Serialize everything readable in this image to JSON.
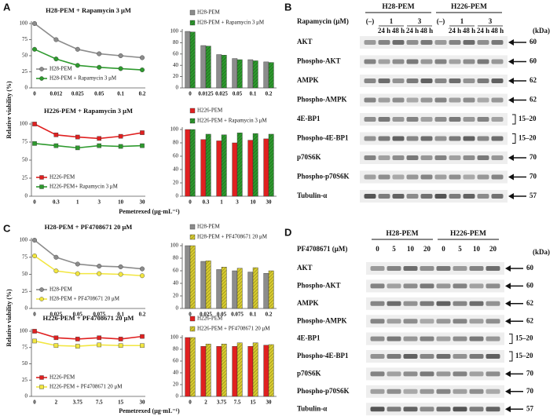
{
  "panel_labels": [
    "A",
    "B",
    "C",
    "D"
  ],
  "axis_labels": [
    {
      "y": "Relative viability (%)",
      "x": "Pemetrexed (μg·mL⁻¹)"
    },
    {
      "y": "Relative viability (%)",
      "x": "Pemetrexed (μg·mL⁻¹)"
    }
  ],
  "chart_data": [
    {
      "type": "line",
      "title": "H28-PEM + Rapamycin 3 μM",
      "categories": [
        "0",
        "0.012",
        "0.025",
        "0.05",
        "0.1",
        "0.2"
      ],
      "ylim": [
        0,
        100
      ],
      "yticks": [
        0,
        25,
        50,
        75,
        100
      ],
      "legend": "lower left",
      "series": [
        {
          "name": "H28-PEM",
          "color": "#8c8c8c",
          "marker": "circle",
          "values": [
            100,
            75,
            60,
            53,
            50,
            47
          ]
        },
        {
          "name": "H28-PEM + Rapamycin 3 μM",
          "color": "#2e9a2e",
          "marker": "circle",
          "values": [
            60,
            45,
            35,
            32,
            30,
            28
          ]
        }
      ]
    },
    {
      "type": "bar",
      "categories": [
        "0",
        "0.0125",
        "0.025",
        "0.05",
        "0.1",
        "0.2"
      ],
      "ylim": [
        0,
        100
      ],
      "yticks": [
        0,
        20,
        40,
        60,
        80,
        100
      ],
      "legend": "upper left",
      "series": [
        {
          "name": "H28-PEM",
          "color": "#8c8c8c",
          "values": [
            100,
            75,
            59,
            52,
            50,
            46
          ]
        },
        {
          "name": "H28-PEM + Rapamycin 3 μM",
          "color": "#2e9a2e",
          "values": [
            99,
            74,
            58,
            50,
            48,
            45
          ]
        }
      ]
    },
    {
      "type": "line",
      "title": "H226-PEM + Rapamycin 3 μM",
      "categories": [
        "0",
        "0.3",
        "1",
        "3",
        "10",
        "30"
      ],
      "ylim": [
        0,
        100
      ],
      "yticks": [
        0,
        25,
        50,
        75,
        100
      ],
      "legend": "lower left",
      "series": [
        {
          "name": "H226-PEM",
          "color": "#e02020",
          "marker": "square",
          "values": [
            100,
            85,
            82,
            80,
            83,
            88
          ]
        },
        {
          "name": "H226-PEM+ Rapamycin 3 μM",
          "color": "#2e9a2e",
          "marker": "square",
          "values": [
            73,
            70,
            67,
            70,
            69,
            70
          ]
        }
      ]
    },
    {
      "type": "bar",
      "categories": [
        "0",
        "0.3",
        "1",
        "3",
        "10",
        "30"
      ],
      "ylim": [
        0,
        100
      ],
      "yticks": [
        0,
        20,
        40,
        60,
        80,
        100
      ],
      "legend": "upper left",
      "series": [
        {
          "name": "H226-PEM",
          "color": "#e02020",
          "values": [
            100,
            85,
            83,
            80,
            84,
            86
          ]
        },
        {
          "name": "H226-PEM + Rapamycin 3 μM",
          "color": "#2e9a2e",
          "values": [
            100,
            93,
            92,
            95,
            94,
            93
          ]
        }
      ]
    },
    {
      "type": "line",
      "title": "H28-PEM + PF4708671 20 μM",
      "categories": [
        "0",
        "0.025",
        "0.05",
        "0.075",
        "0.1",
        "0.2"
      ],
      "ylim": [
        0,
        100
      ],
      "yticks": [
        0,
        25,
        50,
        75,
        100
      ],
      "legend": "lower left",
      "series": [
        {
          "name": "H28-PEM",
          "color": "#8c8c8c",
          "marker": "circle",
          "values": [
            100,
            75,
            65,
            62,
            61,
            58
          ]
        },
        {
          "name": "H28-PEM + PF4708671 20 μM",
          "color": "#f2e640",
          "marker": "circle",
          "values": [
            77,
            55,
            51,
            51,
            50,
            48
          ]
        }
      ]
    },
    {
      "type": "bar",
      "categories": [
        "0",
        "0.025",
        "0.05",
        "0.075",
        "0.1",
        "0.2"
      ],
      "ylim": [
        0,
        100
      ],
      "yticks": [
        0,
        20,
        40,
        60,
        80,
        100
      ],
      "legend": "upper left",
      "series": [
        {
          "name": "H28-PEM",
          "color": "#8c8c8c",
          "values": [
            100,
            75,
            62,
            60,
            58,
            56
          ]
        },
        {
          "name": "H28-PEM + PF4708671 20 μM",
          "color": "#d8cc30",
          "values": [
            100,
            76,
            66,
            64,
            65,
            60
          ]
        }
      ]
    },
    {
      "type": "line",
      "title": "H226-PEM + PF4708671 20 μM",
      "categories": [
        "0",
        "2",
        "3.75",
        "7.5",
        "15",
        "30"
      ],
      "ylim": [
        0,
        100
      ],
      "yticks": [
        0,
        25,
        50,
        75,
        100
      ],
      "legend": "lower left",
      "series": [
        {
          "name": "H226-PEM",
          "color": "#e02020",
          "marker": "square",
          "values": [
            100,
            90,
            88,
            90,
            88,
            92
          ]
        },
        {
          "name": "H226-PEM + PF4708671 20 μM",
          "color": "#f2e640",
          "marker": "square",
          "values": [
            85,
            78,
            77,
            79,
            78,
            78
          ]
        }
      ]
    },
    {
      "type": "bar",
      "categories": [
        "0",
        "2",
        "3.75",
        "7.5",
        "15",
        "30"
      ],
      "ylim": [
        0,
        100
      ],
      "yticks": [
        0,
        20,
        40,
        60,
        80,
        100
      ],
      "legend": "upper left",
      "series": [
        {
          "name": "H226-PEM",
          "color": "#e02020",
          "values": [
            100,
            85,
            85,
            85,
            85,
            87
          ]
        },
        {
          "name": "H226-PEM + PF4708671 20 μM",
          "color": "#d8cc30",
          "values": [
            100,
            89,
            89,
            91,
            91,
            88
          ]
        }
      ]
    }
  ],
  "blots": [
    {
      "treatment": "Rapamycin (μM)",
      "unit_label": "(kDa)",
      "groups": [
        {
          "name": "H28-PEM",
          "doses": [
            {
              "label": "(–)"
            },
            {
              "label": "1",
              "times": [
                "24 h",
                "48 h"
              ]
            },
            {
              "label": "3",
              "times": [
                "24 h",
                "48 h"
              ]
            }
          ]
        },
        {
          "name": "H226-PEM",
          "doses": [
            {
              "label": "(–)"
            },
            {
              "label": "1",
              "times": [
                "24 h",
                "48 h"
              ]
            },
            {
              "label": "3",
              "times": [
                "24 h",
                "48 h"
              ]
            }
          ]
        }
      ],
      "rows": [
        {
          "label": "AKT",
          "kda": 60
        },
        {
          "label": "Phospho-AKT",
          "kda": 60
        },
        {
          "label": "AMPK",
          "kda": 62
        },
        {
          "label": "Phospho-AMPK",
          "kda": 62
        },
        {
          "label": "4E-BP1",
          "kda": "15–20"
        },
        {
          "label": "Phospho-4E-BP1",
          "kda": "15–20"
        },
        {
          "label": "p70S6K",
          "kda": 70
        },
        {
          "label": "Phospho-p70S6K",
          "kda": 70
        },
        {
          "label": "Tubulin-α",
          "kda": 57
        }
      ]
    },
    {
      "treatment": "PF4708671 (μM)",
      "unit_label": "(kDa)",
      "groups": [
        {
          "name": "H28-PEM",
          "doses": [
            {
              "label": "0"
            },
            {
              "label": "5"
            },
            {
              "label": "10"
            },
            {
              "label": "20"
            }
          ]
        },
        {
          "name": "H226-PEM",
          "doses": [
            {
              "label": "0"
            },
            {
              "label": "5"
            },
            {
              "label": "10"
            },
            {
              "label": "20"
            }
          ]
        }
      ],
      "rows": [
        {
          "label": "AKT",
          "kda": 60
        },
        {
          "label": "Phospho-AKT",
          "kda": 60
        },
        {
          "label": "AMPK",
          "kda": 62
        },
        {
          "label": "Phospho-AMPK",
          "kda": 62
        },
        {
          "label": "4E-BP1",
          "kda": "15–20"
        },
        {
          "label": "Phospho-4E-BP1",
          "kda": "15–20"
        },
        {
          "label": "p70S6K",
          "kda": 70
        },
        {
          "label": "Phospho-p70S6K",
          "kda": 70
        },
        {
          "label": "Tubulin-α",
          "kda": 57
        }
      ]
    }
  ]
}
